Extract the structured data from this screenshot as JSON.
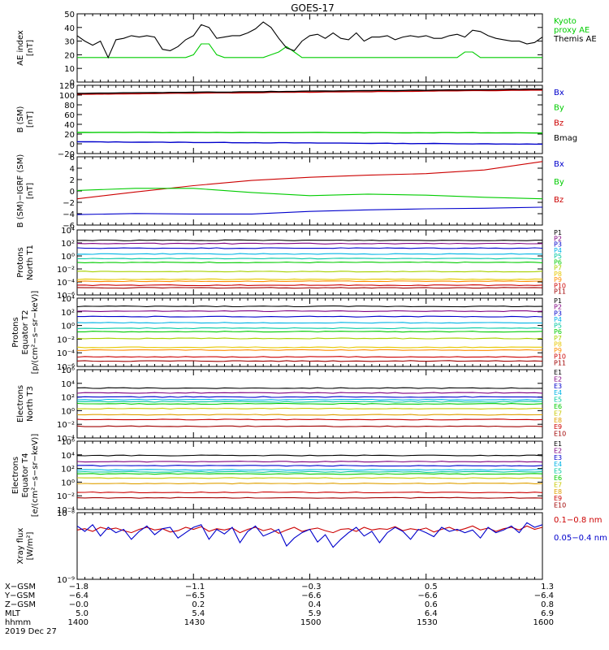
{
  "title": "GOES-17",
  "colors": {
    "black": "#000000",
    "green": "#00cc00",
    "blue": "#0000cc",
    "red": "#cc0000",
    "navy": "#000080",
    "purple": "#6a00a8",
    "cyan": "#00b4e6",
    "teal": "#00c8a0",
    "yellowgreen": "#a8d000",
    "yellow": "#e6c800",
    "orange": "#ff8c00",
    "darkred": "#a00000",
    "crimson": "#c80000",
    "magenta": "#800080",
    "lime": "#00e000",
    "gold": "#c8c800",
    "darkorange": "#e0a000"
  },
  "chart_data": [
    {
      "id": "ae",
      "type": "line",
      "ylabel": "AE index\n[nT]",
      "ylim": [
        0,
        50
      ],
      "yscale": "linear",
      "yticks": [
        "0",
        "10",
        "20",
        "30",
        "40",
        "50"
      ],
      "x": [
        1400,
        1402,
        1404,
        1406,
        1408,
        1410,
        1412,
        1414,
        1416,
        1418,
        1420,
        1422,
        1424,
        1426,
        1428,
        1430,
        1432,
        1434,
        1436,
        1438,
        1440,
        1442,
        1444,
        1446,
        1448,
        1450,
        1452,
        1454,
        1456,
        1458,
        1500,
        1502,
        1504,
        1506,
        1508,
        1510,
        1512,
        1514,
        1516,
        1518,
        1520,
        1522,
        1524,
        1526,
        1528,
        1530,
        1532,
        1534,
        1536,
        1538,
        1540,
        1542,
        1544,
        1546,
        1548,
        1550,
        1552,
        1554,
        1556,
        1558,
        1600
      ],
      "series": [
        {
          "name": "Kyoto proxy AE",
          "color": "#00cc00",
          "values": [
            18,
            18,
            18,
            18,
            18,
            18,
            18,
            18,
            18,
            18,
            18,
            18,
            18,
            18,
            18,
            20,
            28,
            28,
            20,
            18,
            18,
            18,
            18,
            18,
            18,
            20,
            22,
            26,
            22,
            18,
            18,
            18,
            18,
            18,
            18,
            18,
            18,
            18,
            18,
            18,
            18,
            18,
            18,
            18,
            18,
            18,
            18,
            18,
            18,
            18,
            22,
            22,
            18,
            18,
            18,
            18,
            18,
            18,
            18,
            18,
            18
          ]
        },
        {
          "name": "Themis AE",
          "color": "#000000",
          "values": [
            34,
            30,
            27,
            30,
            18,
            31,
            32,
            34,
            33,
            34,
            33,
            24,
            23,
            26,
            31,
            34,
            42,
            40,
            32,
            33,
            34,
            34,
            36,
            39,
            44,
            40,
            32,
            25,
            23,
            30,
            34,
            35,
            32,
            36,
            32,
            31,
            36,
            30,
            33,
            33,
            34,
            31,
            33,
            34,
            33,
            34,
            32,
            32,
            34,
            35,
            33,
            38,
            37,
            34,
            32,
            31,
            30,
            30,
            28,
            29,
            33
          ]
        }
      ],
      "legend": [
        {
          "label": "Kyoto\nproxy AE",
          "color": "#00cc00"
        },
        {
          "label": "Themis AE",
          "color": "#000000"
        }
      ]
    },
    {
      "id": "bsm",
      "type": "line",
      "ylabel": "B (SM)\n[nT]",
      "ylim": [
        -25,
        120
      ],
      "yscale": "linear",
      "yticks": [
        "−20",
        "0",
        "20",
        "40",
        "60",
        "80",
        "100",
        "120"
      ],
      "series": [
        {
          "name": "Bz",
          "color": "#cc0000",
          "start": 101,
          "end": 110
        },
        {
          "name": "By",
          "color": "#00cc00",
          "start": 20,
          "end": 19
        },
        {
          "name": "Bx",
          "color": "#0000cc",
          "start": 0,
          "end": -5
        },
        {
          "name": "Bmag",
          "color": "#000000",
          "start": 103,
          "end": 112
        }
      ],
      "legend": [
        {
          "label": "Bx",
          "color": "#0000cc"
        },
        {
          "label": "By",
          "color": "#00cc00"
        },
        {
          "label": "Bz",
          "color": "#cc0000"
        },
        {
          "label": "Bmag",
          "color": "#000000"
        }
      ]
    },
    {
      "id": "bigrf",
      "type": "line",
      "ylabel": "B (SM)−IGRF (SM)\n[nT]",
      "ylim": [
        -6.5,
        6.5
      ],
      "yscale": "linear",
      "yticks": [
        "−6",
        "−4",
        "−2",
        "0",
        "2",
        "4",
        "6"
      ],
      "x": [
        1400,
        1415,
        1430,
        1445,
        1500,
        1515,
        1530,
        1545,
        1600
      ],
      "series": [
        {
          "name": "Bz",
          "color": "#cc0000",
          "values": [
            -1.5,
            -0.2,
            1.0,
            2.0,
            2.6,
            3.0,
            3.3,
            4.0,
            5.6
          ]
        },
        {
          "name": "By",
          "color": "#00cc00",
          "values": [
            0.1,
            0.5,
            0.5,
            -0.3,
            -0.9,
            -0.6,
            -0.8,
            -1.2,
            -1.5
          ]
        },
        {
          "name": "Bx",
          "color": "#0000cc",
          "values": [
            -4.5,
            -4.3,
            -4.4,
            -4.4,
            -3.9,
            -3.6,
            -3.4,
            -3.3,
            -3.1
          ]
        }
      ],
      "legend": [
        {
          "label": "Bx",
          "color": "#0000cc"
        },
        {
          "label": "By",
          "color": "#00cc00"
        },
        {
          "label": "Bz",
          "color": "#cc0000"
        }
      ]
    },
    {
      "id": "protons_t1",
      "type": "line",
      "ylabel": "Protons\nNorth T1",
      "yscale": "log",
      "ylim": [
        -6,
        4
      ],
      "yticks": [
        "10⁻⁶",
        "10⁻⁴",
        "10⁻²",
        "10⁰",
        "10²",
        "10⁴"
      ],
      "series": [
        {
          "name": "P1",
          "color": "#000000",
          "logv": 2.4
        },
        {
          "name": "P2",
          "color": "#800080",
          "logv": 1.9
        },
        {
          "name": "P3",
          "color": "#0000cc",
          "logv": 1.2
        },
        {
          "name": "P4",
          "color": "#00b4e6",
          "logv": 0.3
        },
        {
          "name": "P5",
          "color": "#00c8a0",
          "logv": -0.4
        },
        {
          "name": "P6",
          "color": "#00cc00",
          "logv": -1.0
        },
        {
          "name": "P7",
          "color": "#a8d000",
          "logv": -2.4
        },
        {
          "name": "P8",
          "color": "#e6c800",
          "logv": -3.6
        },
        {
          "name": "P9",
          "color": "#ff8c00",
          "logv": -3.9
        },
        {
          "name": "P10",
          "color": "#cc0000",
          "logv": -4.5
        },
        {
          "name": "P11",
          "color": "#a00000",
          "logv": -4.9
        }
      ],
      "legend": [
        "P1",
        "P2",
        "P3",
        "P4",
        "P5",
        "P6",
        "P7",
        "P8",
        "P9",
        "P10",
        "P11"
      ]
    },
    {
      "id": "protons_t2",
      "type": "line",
      "ylabel": "Protons\nEquator T2\n[p/(cm²−s−sr−keV)]",
      "yscale": "log",
      "ylim": [
        -6,
        4
      ],
      "yticks": [
        "10⁻⁶",
        "10⁻⁴",
        "10⁻²",
        "10⁰",
        "10²",
        "10⁴"
      ],
      "series": [
        {
          "name": "P1",
          "color": "#000000",
          "logv": 2.8
        },
        {
          "name": "P2",
          "color": "#800080",
          "logv": 2.1
        },
        {
          "name": "P3",
          "color": "#0000cc",
          "logv": 1.3
        },
        {
          "name": "P4",
          "color": "#00b4e6",
          "logv": 0.4
        },
        {
          "name": "P5",
          "color": "#00c8a0",
          "logv": -0.4
        },
        {
          "name": "P6",
          "color": "#00cc00",
          "logv": -0.9
        },
        {
          "name": "P7",
          "color": "#a8d000",
          "logv": -1.9
        },
        {
          "name": "P8",
          "color": "#e6c800",
          "logv": -3.2
        },
        {
          "name": "P9",
          "color": "#ff8c00",
          "logv": -3.6
        },
        {
          "name": "P10",
          "color": "#cc0000",
          "logv": -4.6
        },
        {
          "name": "P11",
          "color": "#a00000",
          "logv": -5.2
        }
      ],
      "legend": [
        "P1",
        "P2",
        "P3",
        "P4",
        "P5",
        "P6",
        "P7",
        "P8",
        "P9",
        "P10",
        "P11"
      ]
    },
    {
      "id": "electrons_t3",
      "type": "line",
      "ylabel": "Electrons\nNorth T3",
      "yscale": "log",
      "ylim": [
        -4,
        6
      ],
      "yticks": [
        "10⁻⁴",
        "10⁻²",
        "10⁰",
        "10²",
        "10⁴",
        "10⁶"
      ],
      "series": [
        {
          "name": "E1",
          "color": "#000000",
          "logv": 3.3
        },
        {
          "name": "E2",
          "color": "#800080",
          "logv": 2.6
        },
        {
          "name": "E3",
          "color": "#0000cc",
          "logv": 2.0
        },
        {
          "name": "E4",
          "color": "#00b4e6",
          "logv": 1.6
        },
        {
          "name": "E5",
          "color": "#00c8a0",
          "logv": 1.3
        },
        {
          "name": "E6",
          "color": "#00cc00",
          "logv": 1.0
        },
        {
          "name": "E7",
          "color": "#c8c800",
          "logv": 0.3
        },
        {
          "name": "E8",
          "color": "#e0a000",
          "logv": -0.6
        },
        {
          "name": "E9",
          "color": "#cc0000",
          "logv": -1.3
        },
        {
          "name": "E10",
          "color": "#a00000",
          "logv": -2.3
        }
      ],
      "legend": [
        "E1",
        "E2",
        "E3",
        "E4",
        "E5",
        "E6",
        "E7",
        "E8",
        "E9",
        "E10"
      ]
    },
    {
      "id": "electrons_t4",
      "type": "line",
      "ylabel": "Electrons\nEquator T4\n[e/(cm²−s−sr−keV)]",
      "yscale": "log",
      "ylim": [
        -4,
        6
      ],
      "yticks": [
        "10⁻⁴",
        "10⁻²",
        "10⁰",
        "10²",
        "10⁴",
        "10⁶"
      ],
      "series": [
        {
          "name": "E1",
          "color": "#000000",
          "logv": 3.9
        },
        {
          "name": "E2",
          "color": "#800080",
          "logv": 3.0
        },
        {
          "name": "E3",
          "color": "#0000cc",
          "logv": 2.4
        },
        {
          "name": "E4",
          "color": "#00b4e6",
          "logv": 1.8
        },
        {
          "name": "E5",
          "color": "#00c8a0",
          "logv": 1.5
        },
        {
          "name": "E6",
          "color": "#00cc00",
          "logv": 1.2
        },
        {
          "name": "E7",
          "color": "#c8c800",
          "logv": 0.6
        },
        {
          "name": "E8",
          "color": "#e0a000",
          "logv": -0.2
        },
        {
          "name": "E9",
          "color": "#cc0000",
          "logv": -1.5
        },
        {
          "name": "E10",
          "color": "#a00000",
          "logv": -2.3
        }
      ],
      "legend": [
        "E1",
        "E2",
        "E3",
        "E4",
        "E5",
        "E6",
        "E7",
        "E8",
        "E9",
        "E10"
      ]
    },
    {
      "id": "xray",
      "type": "line",
      "ylabel": "Xray flux\n[W/m²]",
      "yscale": "log",
      "ylim": [
        -9,
        -8
      ],
      "yticks": [
        "10⁻⁹",
        "10⁻⁸"
      ],
      "x": [
        1400,
        1402,
        1404,
        1406,
        1408,
        1410,
        1412,
        1414,
        1416,
        1418,
        1420,
        1422,
        1424,
        1426,
        1428,
        1430,
        1432,
        1434,
        1436,
        1438,
        1440,
        1442,
        1444,
        1446,
        1448,
        1450,
        1452,
        1454,
        1456,
        1458,
        1500,
        1502,
        1504,
        1506,
        1508,
        1510,
        1512,
        1514,
        1516,
        1518,
        1520,
        1522,
        1524,
        1526,
        1528,
        1530,
        1532,
        1534,
        1536,
        1538,
        1540,
        1542,
        1544,
        1546,
        1548,
        1550,
        1552,
        1554,
        1556,
        1558,
        1600
      ],
      "series": [
        {
          "name": "0.1−0.8 nm",
          "color": "#cc0000",
          "values": [
            -8.26,
            -8.24,
            -8.28,
            -8.22,
            -8.25,
            -8.23,
            -8.27,
            -8.3,
            -8.25,
            -8.22,
            -8.26,
            -8.24,
            -8.29,
            -8.27,
            -8.22,
            -8.25,
            -8.21,
            -8.28,
            -8.24,
            -8.26,
            -8.23,
            -8.3,
            -8.25,
            -8.22,
            -8.27,
            -8.24,
            -8.31,
            -8.26,
            -8.22,
            -8.28,
            -8.25,
            -8.23,
            -8.27,
            -8.3,
            -8.25,
            -8.24,
            -8.28,
            -8.22,
            -8.26,
            -8.24,
            -8.25,
            -8.21,
            -8.27,
            -8.24,
            -8.26,
            -8.23,
            -8.29,
            -8.25,
            -8.22,
            -8.27,
            -8.24,
            -8.2,
            -8.26,
            -8.23,
            -8.28,
            -8.24,
            -8.22,
            -8.26,
            -8.2,
            -8.25,
            -8.22
          ]
        },
        {
          "name": "0.05−0.4 nm",
          "color": "#0000cc",
          "values": [
            -8.2,
            -8.28,
            -8.18,
            -8.35,
            -8.22,
            -8.3,
            -8.25,
            -8.4,
            -8.28,
            -8.2,
            -8.33,
            -8.24,
            -8.22,
            -8.38,
            -8.3,
            -8.22,
            -8.18,
            -8.4,
            -8.25,
            -8.32,
            -8.22,
            -8.45,
            -8.28,
            -8.2,
            -8.35,
            -8.3,
            -8.25,
            -8.5,
            -8.38,
            -8.3,
            -8.25,
            -8.44,
            -8.33,
            -8.52,
            -8.4,
            -8.3,
            -8.22,
            -8.35,
            -8.28,
            -8.45,
            -8.3,
            -8.22,
            -8.28,
            -8.4,
            -8.25,
            -8.3,
            -8.36,
            -8.22,
            -8.28,
            -8.25,
            -8.3,
            -8.26,
            -8.38,
            -8.22,
            -8.3,
            -8.26,
            -8.2,
            -8.3,
            -8.15,
            -8.22,
            -8.18
          ]
        }
      ],
      "legend": [
        {
          "label": "0.1−0.8 nm",
          "color": "#cc0000"
        },
        {
          "label": "0.05−0.4 nm",
          "color": "#0000cc"
        }
      ]
    }
  ],
  "footer": {
    "labels": [
      "X−GSM",
      "Y−GSM",
      "Z−GSM",
      "MLT",
      "hhmm",
      "2019 Dec 27"
    ],
    "columns": [
      [
        "−1.8",
        "−6.4",
        "−0.0",
        "5.0",
        "1400"
      ],
      [
        "−1.1",
        "−6.5",
        "0.2",
        "5.4",
        "1430"
      ],
      [
        "−0.3",
        "−6.6",
        "0.4",
        "5.9",
        "1500"
      ],
      [
        "0.5",
        "−6.6",
        "0.6",
        "6.4",
        "1530"
      ],
      [
        "1.3",
        "−6.4",
        "0.8",
        "6.9",
        "1600"
      ]
    ]
  }
}
